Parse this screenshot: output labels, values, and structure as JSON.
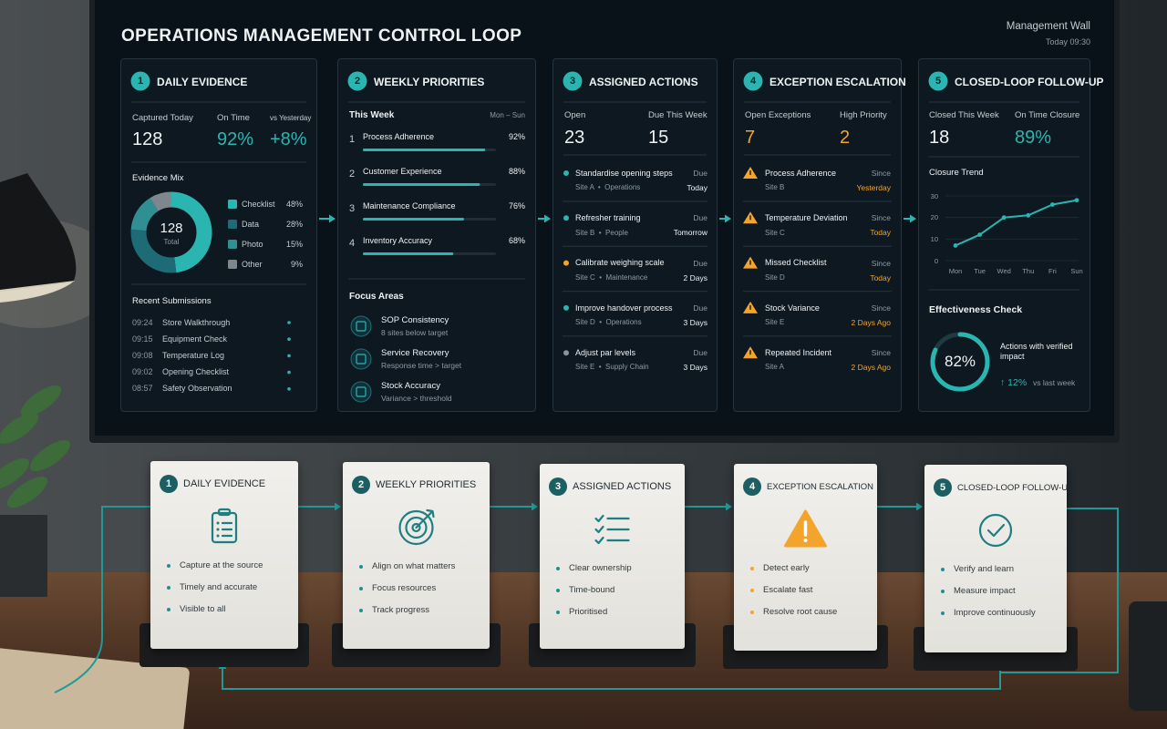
{
  "screen": {
    "title": "OPERATIONS MANAGEMENT CONTROL LOOP",
    "wall": "Management Wall",
    "time": "Today 09:30",
    "panels": [
      {
        "num": "1",
        "title": "DAILY EVIDENCE",
        "stats": [
          {
            "label": "Captured Today",
            "value": "128"
          },
          {
            "label": "On Time",
            "value": "92%"
          },
          {
            "label": "vs Yesterday",
            "value": "+8%"
          }
        ],
        "recent_title": "Recent Submissions",
        "recent": [
          {
            "time": "09:24",
            "label": "Store Walkthrough"
          },
          {
            "time": "09:15",
            "label": "Equipment Check"
          },
          {
            "time": "09:08",
            "label": "Temperature Log"
          },
          {
            "time": "09:02",
            "label": "Opening Checklist"
          },
          {
            "time": "08:57",
            "label": "Safety Observation"
          }
        ]
      },
      {
        "num": "2",
        "title": "WEEKLY PRIORITIES",
        "period": "This Week",
        "range": "Mon – Sun",
        "focus_title": "Focus Areas",
        "focus": [
          {
            "title": "SOP Consistency",
            "sub": "8 sites below target"
          },
          {
            "title": "Service Recovery",
            "sub": "Response time > target"
          },
          {
            "title": "Stock Accuracy",
            "sub": "Variance > threshold"
          }
        ]
      },
      {
        "num": "3",
        "title": "ASSIGNED ACTIONS",
        "stats": [
          {
            "label": "Open",
            "value": "23"
          },
          {
            "label": "Due This Week",
            "value": "15"
          }
        ],
        "items": [
          {
            "title": "Standardise opening steps",
            "site": "Site A  •  Operations",
            "due_label": "Due",
            "due": "Today"
          },
          {
            "title": "Refresher training",
            "site": "Site B  •  People",
            "due_label": "Due",
            "due": "Tomorrow"
          },
          {
            "title": "Calibrate weighing scale",
            "site": "Site C  •  Maintenance",
            "due_label": "Due",
            "due": "2 Days"
          },
          {
            "title": "Improve handover process",
            "site": "Site D  •  Operations",
            "due_label": "Due",
            "due": "3 Days"
          },
          {
            "title": "Adjust par levels",
            "site": "Site E  •  Supply Chain",
            "due_label": "Due",
            "due": "3 Days"
          }
        ]
      },
      {
        "num": "4",
        "title": "EXCEPTION ESCALATION",
        "stats": [
          {
            "label": "Open Exceptions",
            "value": "7"
          },
          {
            "label": "High Priority",
            "value": "2"
          }
        ],
        "items": [
          {
            "title": "Process Adherence",
            "site": "Site B",
            "due_label": "Since",
            "due": "Yesterday"
          },
          {
            "title": "Temperature Deviation",
            "site": "Site C",
            "due_label": "Since",
            "due": "Today"
          },
          {
            "title": "Missed Checklist",
            "site": "Site D",
            "due_label": "Since",
            "due": "Today"
          },
          {
            "title": "Stock Variance",
            "site": "Site E",
            "due_label": "Since",
            "due": "2 Days Ago"
          },
          {
            "title": "Repeated Incident",
            "site": "Site A",
            "due_label": "Since",
            "due": "2 Days Ago"
          }
        ]
      },
      {
        "num": "5",
        "title": "CLOSED-LOOP FOLLOW-UP",
        "stats": [
          {
            "label": "Closed This Week",
            "value": "18"
          },
          {
            "label": "On Time Closure",
            "value": "89%"
          }
        ],
        "effect_title": "Effectiveness Check",
        "effect_text": "Actions with verified impact",
        "change": "↑ 12%",
        "change_note": "vs last week"
      }
    ]
  },
  "cards": [
    {
      "num": "1",
      "title": "DAILY EVIDENCE",
      "bullets": [
        "Capture at the source",
        "Timely and accurate",
        "Visible to all"
      ]
    },
    {
      "num": "2",
      "title": "WEEKLY PRIORITIES",
      "bullets": [
        "Align on what matters",
        "Focus resources",
        "Track progress"
      ]
    },
    {
      "num": "3",
      "title": "ASSIGNED ACTIONS",
      "bullets": [
        "Clear ownership",
        "Time-bound",
        "Prioritised"
      ]
    },
    {
      "num": "4",
      "title": "EXCEPTION ESCALATION",
      "bullets": [
        "Detect early",
        "Escalate fast",
        "Resolve root cause"
      ]
    },
    {
      "num": "5",
      "title": "CLOSED-LOOP FOLLOW-UP",
      "bullets": [
        "Verify and learn",
        "Measure impact",
        "Improve continuously"
      ]
    }
  ],
  "chart_data": [
    {
      "type": "pie",
      "title": "Evidence Mix",
      "center_value": "128",
      "center_label": "Total",
      "categories": [
        "Checklist",
        "Data",
        "Photo",
        "Other"
      ],
      "values": [
        48,
        28,
        15,
        9
      ],
      "value_labels": [
        "48%",
        "28%",
        "15%",
        "9%"
      ],
      "colors": [
        "#2bb5b0",
        "#1d6b74",
        "#2f8f93",
        "#7d878c"
      ]
    },
    {
      "type": "bar",
      "ranks": [
        "1",
        "2",
        "3",
        "4"
      ],
      "categories": [
        "Process Adherence",
        "Customer Experience",
        "Maintenance Compliance",
        "Inventory Accuracy"
      ],
      "values": [
        92,
        88,
        76,
        68
      ],
      "value_labels": [
        "92%",
        "88%",
        "76%",
        "68%"
      ],
      "xlim": [
        0,
        100
      ],
      "color": "#2bb5b0"
    },
    {
      "type": "line",
      "title": "Closure Trend",
      "categories": [
        "Mon",
        "Tue",
        "Wed",
        "Thu",
        "Fri",
        "Sun"
      ],
      "values": [
        7,
        12,
        20,
        21,
        26,
        28
      ],
      "ylim": [
        0,
        30
      ],
      "yticks": [
        0,
        10,
        20,
        30
      ],
      "color": "#2bb5b0"
    },
    {
      "type": "gauge",
      "value": 82,
      "value_label": "82%",
      "ylim": [
        0,
        100
      ],
      "color": "#2bb5b0"
    }
  ]
}
